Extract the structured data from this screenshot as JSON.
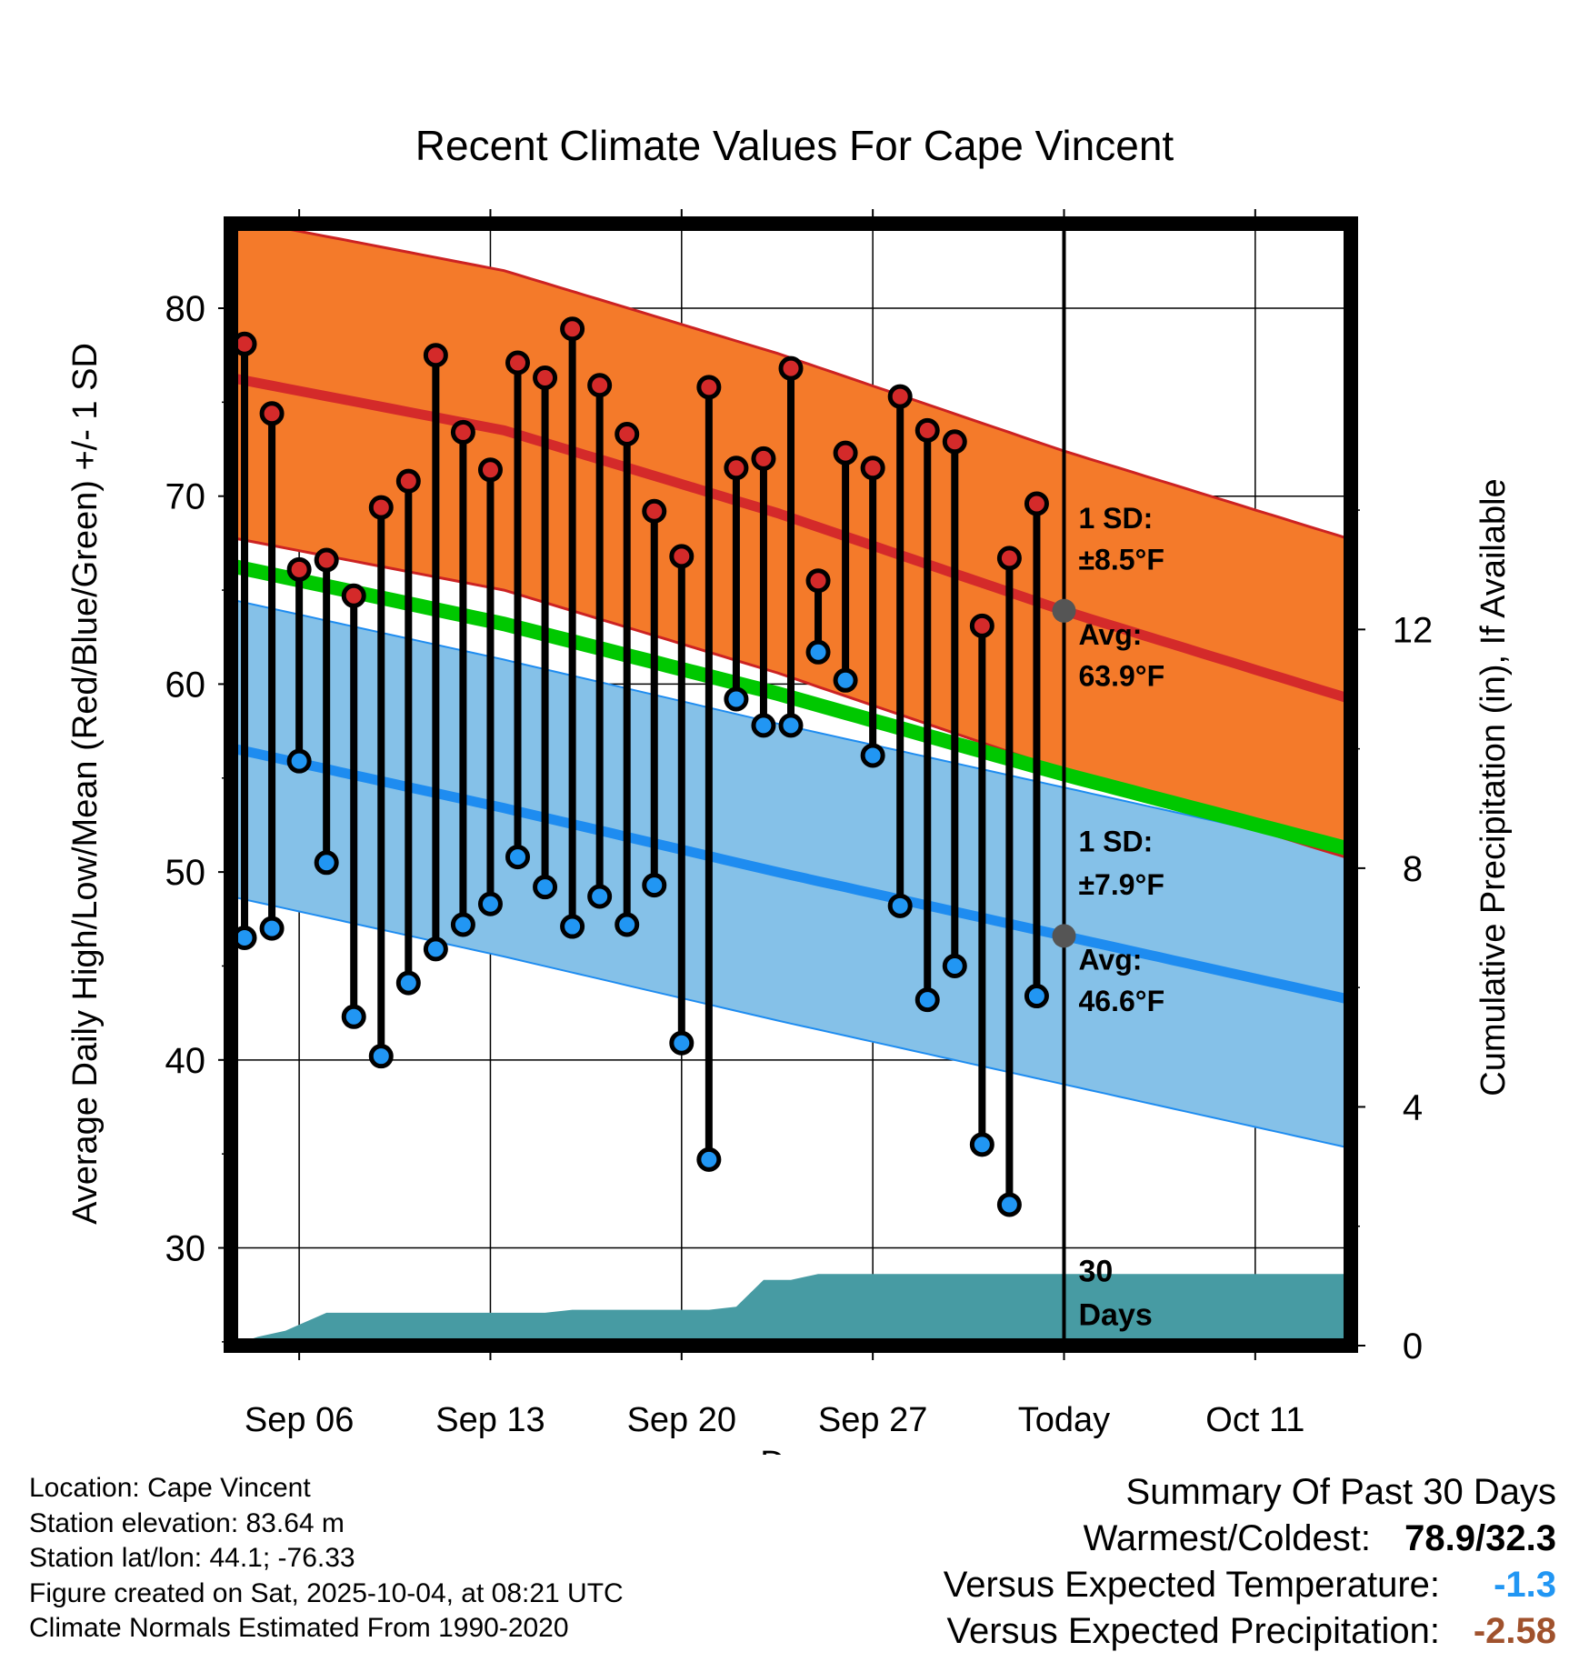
{
  "chart_data": {
    "type": "line",
    "title": "Recent Climate Values For Cape Vincent",
    "xlabel": "Day",
    "ylabel": "Average Daily High/Low/Mean (Red/Blue/Green) +/- 1 SD",
    "y2label": "Cumulative Precipitation (in), If Available",
    "ylim": [
      24.8,
      84.5
    ],
    "y2lim": [
      0,
      18.8
    ],
    "yticks": [
      30,
      40,
      50,
      60,
      70,
      80
    ],
    "y2ticks": [
      0,
      4,
      8,
      12
    ],
    "x_range_days": [
      -30.5,
      10.5
    ],
    "x_ticks": [
      {
        "label": "Sep 06",
        "day": -28
      },
      {
        "label": "Sep 13",
        "day": -21
      },
      {
        "label": "Sep 20",
        "day": -14
      },
      {
        "label": "Sep 27",
        "day": -7
      },
      {
        "label": "Today",
        "day": 0
      },
      {
        "label": "Oct 11",
        "day": 7
      }
    ],
    "today_day": 0,
    "observed": {
      "days": [
        -30,
        -29,
        -28,
        -27,
        -26,
        -25,
        -24,
        -23,
        -22,
        -21,
        -20,
        -19,
        -18,
        -17,
        -16,
        -15,
        -14,
        -13,
        -12,
        -11,
        -10,
        -9,
        -8,
        -7,
        -6,
        -5,
        -4,
        -3,
        -2,
        -1
      ],
      "highs": [
        78.1,
        74.4,
        66.1,
        66.6,
        64.7,
        69.4,
        70.8,
        77.5,
        73.4,
        71.4,
        77.1,
        76.3,
        78.9,
        75.9,
        73.3,
        69.2,
        66.8,
        75.8,
        71.5,
        72.0,
        76.8,
        65.5,
        72.3,
        71.5,
        75.3,
        73.5,
        72.9,
        63.1,
        66.7,
        69.6
      ],
      "lows": [
        46.5,
        47.0,
        55.9,
        50.5,
        42.3,
        40.2,
        44.1,
        45.9,
        47.2,
        48.3,
        50.8,
        49.2,
        47.1,
        48.7,
        47.2,
        49.3,
        40.9,
        34.7,
        59.2,
        57.8,
        57.8,
        61.7,
        60.2,
        56.2,
        48.2,
        43.2,
        45.0,
        35.5,
        32.3,
        43.4
      ]
    },
    "normals": {
      "days": [
        -30.5,
        -20.5,
        -10.5,
        0,
        10.5
      ],
      "high_mean": [
        76.3,
        73.5,
        69.1,
        63.9,
        59.2
      ],
      "high_sd": 8.5,
      "low_mean": [
        56.6,
        53.4,
        50.0,
        46.6,
        43.2
      ],
      "low_sd": 7.9,
      "mean": [
        66.3,
        63.2,
        59.5,
        55.2,
        51.2
      ]
    },
    "precipitation": {
      "days": [
        -30.5,
        -29.5,
        -28.5,
        -28,
        -27,
        -26,
        -25,
        -24,
        -23,
        -22,
        -21,
        -20,
        -19,
        -18,
        -17,
        -16,
        -15,
        -14,
        -13,
        -12,
        -11,
        -10,
        -9,
        -8,
        0,
        10.5
      ],
      "cumulative": [
        0,
        0.15,
        0.25,
        0.35,
        0.55,
        0.55,
        0.55,
        0.55,
        0.55,
        0.55,
        0.55,
        0.55,
        0.55,
        0.6,
        0.6,
        0.6,
        0.6,
        0.6,
        0.6,
        0.65,
        1.1,
        1.1,
        1.2,
        1.2,
        1.2,
        1.2
      ]
    },
    "annotations": {
      "high_sd": "1 SD:",
      "high_sd_value": "±8.5°F",
      "high_avg": "Avg:",
      "high_avg_value": "63.9°F",
      "low_sd": "1 SD:",
      "low_sd_value": "±7.9°F",
      "low_avg": "Avg:",
      "low_avg_value": "46.6°F",
      "period_number": "30",
      "period_unit": "Days"
    },
    "colors": {
      "high_band": "#f47a2a",
      "high_line": "#d42a2a",
      "high_edge": "#cc2222",
      "low_band": "#85c1e8",
      "low_line": "#1e8cf0",
      "mean_line": "#00c800",
      "precip": "#479ba3",
      "high_dot": "#d42a2a",
      "low_dot": "#2196f3",
      "annotation": "#555555",
      "avg_dot": "#555555"
    }
  },
  "info": {
    "location": "Location: Cape Vincent",
    "elevation": "Station elevation: 83.64 m",
    "latlon": "Station lat/lon: 44.1; -76.33",
    "created": "Figure created on Sat, 2025-10-04, at 08:21 UTC",
    "normals": "Climate Normals Estimated From 1990-2020"
  },
  "summary": {
    "title": "Summary Of Past 30 Days",
    "warmest_label": "Warmest/Coldest:",
    "warmest_value": "78.9/32.3",
    "temp_label": "Versus Expected Temperature:",
    "temp_value": "-1.3",
    "temp_color": "#2196f3",
    "precip_label": "Versus Expected Precipitation:",
    "precip_value": "-2.58",
    "precip_color": "#a0522d"
  }
}
